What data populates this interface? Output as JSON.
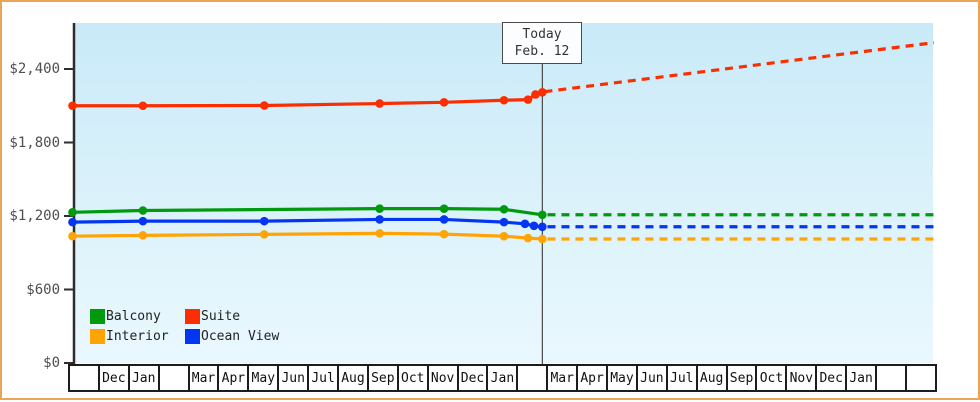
{
  "chart_data": {
    "type": "line",
    "title": "",
    "today_marker": {
      "line1": "Today",
      "line2": "Feb. 12",
      "month_x": 15.83
    },
    "y_axis": {
      "tick_values": [
        0,
        600,
        1200,
        1800,
        2400
      ],
      "tick_labels": [
        "$0",
        "$600",
        "$1,200",
        "$1,800",
        "$2,400"
      ],
      "ylim": [
        0,
        2780
      ],
      "grid": false
    },
    "x_axis": {
      "month_cells": [
        "",
        "Dec",
        "Jan",
        "",
        "Mar",
        "Apr",
        "May",
        "Jun",
        "Jul",
        "Aug",
        "Sep",
        "Oct",
        "Nov",
        "Dec",
        "Jan",
        "",
        "Mar",
        "Apr",
        "May",
        "Jun",
        "Jul",
        "Aug",
        "Sep",
        "Oct",
        "Nov",
        "Dec",
        "Jan",
        "",
        ""
      ]
    },
    "legend": [
      {
        "name": "Balcony",
        "color": "#019A0E"
      },
      {
        "name": "Suite",
        "color": "#FA2E00"
      },
      {
        "name": "Interior",
        "color": "#FFA404"
      },
      {
        "name": "Ocean View",
        "color": "#0435F0"
      }
    ],
    "series": [
      {
        "name": "Suite",
        "color": "#FA2E00",
        "solid": [
          {
            "month_x": 0.15,
            "price": 2100
          },
          {
            "month_x": 2.5,
            "price": 2100
          },
          {
            "month_x": 6.55,
            "price": 2102
          },
          {
            "month_x": 10.4,
            "price": 2118
          },
          {
            "month_x": 12.55,
            "price": 2128
          },
          {
            "month_x": 14.55,
            "price": 2145
          },
          {
            "month_x": 15.35,
            "price": 2150
          },
          {
            "month_x": 15.6,
            "price": 2192
          },
          {
            "month_x": 15.83,
            "price": 2210
          }
        ],
        "projected_dotted": {
          "from": {
            "month_x": 15.9,
            "price": 2215
          },
          "to": {
            "month_x": 28.9,
            "price": 2615
          }
        }
      },
      {
        "name": "Balcony",
        "color": "#019A0E",
        "solid": [
          {
            "month_x": 0.15,
            "price": 1230
          },
          {
            "month_x": 2.5,
            "price": 1245
          },
          {
            "month_x": 10.4,
            "price": 1260
          },
          {
            "month_x": 12.55,
            "price": 1260
          },
          {
            "month_x": 14.55,
            "price": 1255
          },
          {
            "month_x": 15.83,
            "price": 1210
          }
        ],
        "projected_dotted": {
          "from": {
            "month_x": 16.0,
            "price": 1210
          },
          "to": {
            "month_x": 28.9,
            "price": 1210
          }
        }
      },
      {
        "name": "Ocean View",
        "color": "#0435F0",
        "solid": [
          {
            "month_x": 0.15,
            "price": 1150
          },
          {
            "month_x": 2.5,
            "price": 1158
          },
          {
            "month_x": 6.55,
            "price": 1158
          },
          {
            "month_x": 10.4,
            "price": 1172
          },
          {
            "month_x": 12.55,
            "price": 1172
          },
          {
            "month_x": 14.55,
            "price": 1150
          },
          {
            "month_x": 15.25,
            "price": 1136
          },
          {
            "month_x": 15.55,
            "price": 1120
          },
          {
            "month_x": 15.83,
            "price": 1112
          }
        ],
        "projected_dotted": {
          "from": {
            "month_x": 16.0,
            "price": 1112
          },
          "to": {
            "month_x": 28.9,
            "price": 1112
          }
        }
      },
      {
        "name": "Interior",
        "color": "#FFA404",
        "solid": [
          {
            "month_x": 0.15,
            "price": 1035
          },
          {
            "month_x": 2.5,
            "price": 1042
          },
          {
            "month_x": 6.55,
            "price": 1050
          },
          {
            "month_x": 10.4,
            "price": 1058
          },
          {
            "month_x": 12.55,
            "price": 1052
          },
          {
            "month_x": 14.55,
            "price": 1035
          },
          {
            "month_x": 15.35,
            "price": 1020
          },
          {
            "month_x": 15.83,
            "price": 1012
          }
        ],
        "projected_dotted": {
          "from": {
            "month_x": 16.0,
            "price": 1012
          },
          "to": {
            "month_x": 28.9,
            "price": 1012
          }
        }
      }
    ],
    "style": {
      "page_border_color": "#EBA558",
      "plot_bg_top": "#C9EAF8",
      "plot_bg_bottom": "#EAF8FE",
      "axis_color": "#2d2d2d",
      "today_line_color": "#4a4a4a"
    }
  }
}
